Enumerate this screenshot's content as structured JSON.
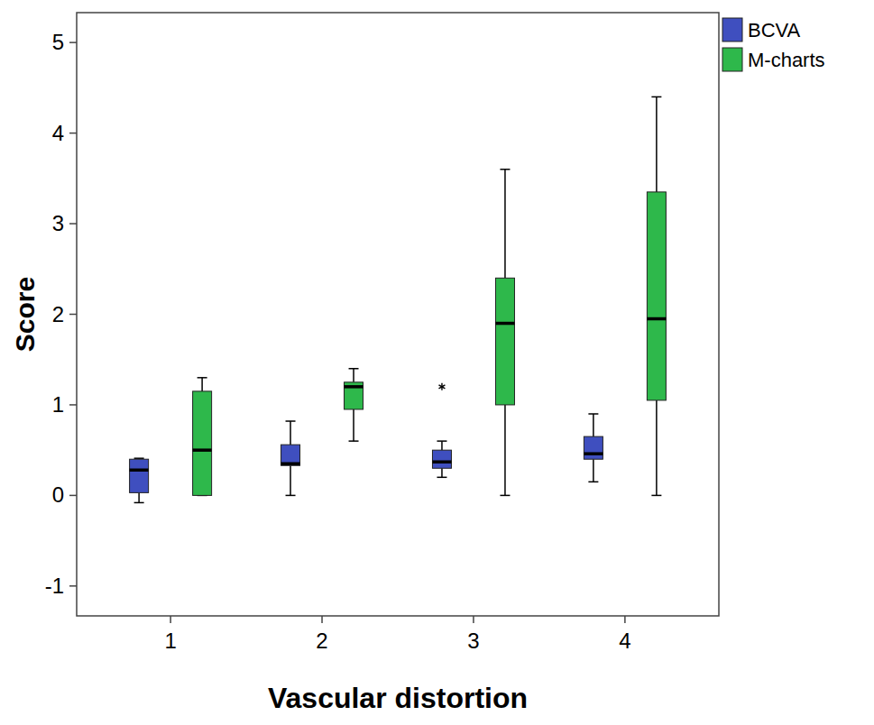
{
  "chart_data": {
    "type": "box",
    "x_label": "Vascular distortion",
    "y_label": "Score",
    "categories": [
      "1",
      "2",
      "3",
      "4"
    ],
    "ylim": [
      -1.33,
      5.33
    ],
    "yticks": [
      -1,
      0,
      1,
      2,
      3,
      4,
      5
    ],
    "legend": "right",
    "grid": false,
    "series": [
      {
        "name": "BCVA",
        "color": "#3f4fbf",
        "marker": "asterisk",
        "min": [
          -0.08,
          0,
          0.2,
          0.15
        ],
        "q1": [
          0.03,
          0.33,
          0.3,
          0.4
        ],
        "median": [
          0.28,
          0.35,
          0.37,
          0.46
        ],
        "q3": [
          0.4,
          0.56,
          0.5,
          0.65
        ],
        "max": [
          0.41,
          0.82,
          0.6,
          0.9
        ],
        "outliers": [
          [],
          [],
          [
            1.2
          ],
          []
        ]
      },
      {
        "name": "M-charts",
        "color": "#2eb84b",
        "marker": "asterisk",
        "min": [
          0,
          0.6,
          0,
          0
        ],
        "q1": [
          0,
          0.95,
          1.0,
          1.05
        ],
        "median": [
          0.5,
          1.2,
          1.9,
          1.95
        ],
        "q3": [
          1.15,
          1.25,
          2.4,
          3.35
        ],
        "max": [
          1.3,
          1.4,
          3.6,
          4.4
        ],
        "outliers": [
          [],
          [],
          [],
          []
        ]
      }
    ]
  }
}
